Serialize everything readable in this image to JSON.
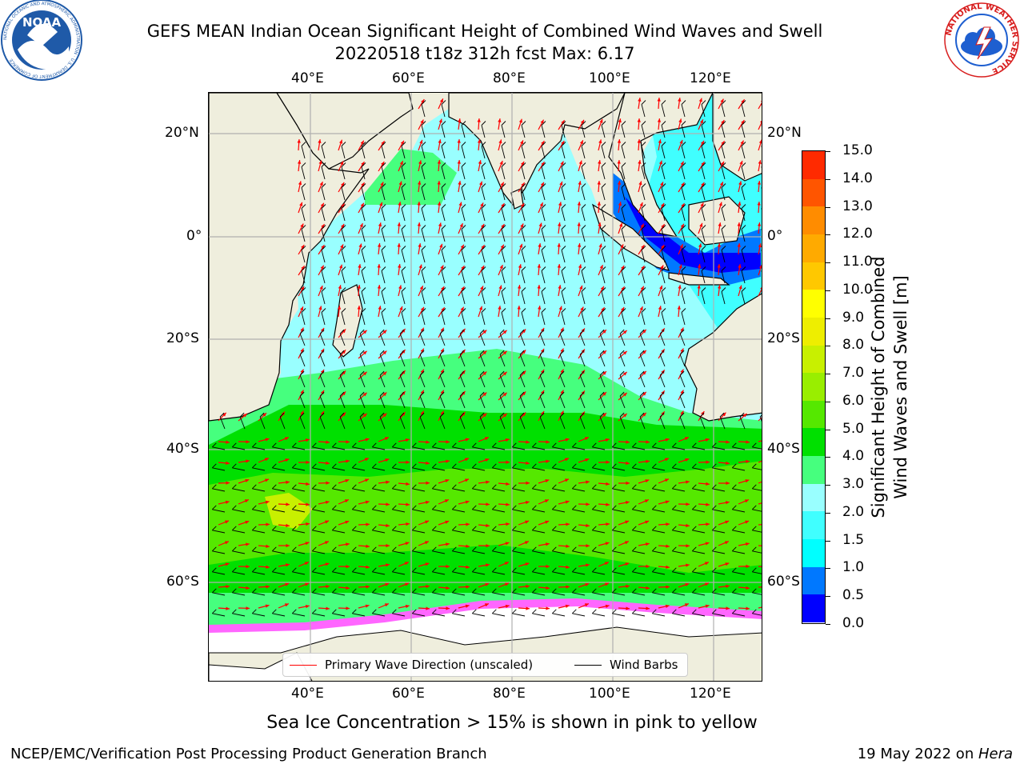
{
  "header": {
    "title_line1": "GEFS MEAN Indian Ocean Significant Height of Combined Wind Waves and Swell",
    "title_line2": "20220518 t18z 312h fcst   Max: 6.17"
  },
  "logos": {
    "left_text": "NOAA",
    "left_ring_text": "NATIONAL OCEANIC AND ATMOSPHERIC ADMINISTRATION · U.S. DEPARTMENT OF COMMERCE",
    "right_ring_text": "NATIONAL WEATHER SERVICE",
    "colors": {
      "noaa_blue": "#1f5aa8",
      "nws_red": "#d81e1e",
      "nws_blue": "#1e5fd0"
    }
  },
  "map": {
    "lon_labels": [
      "40°E",
      "60°E",
      "80°E",
      "100°E",
      "120°E"
    ],
    "lat_labels": [
      "20°N",
      "0°",
      "20°S",
      "40°S",
      "60°S"
    ],
    "lon_range": [
      20,
      130
    ],
    "lat_range": [
      -72,
      27
    ],
    "grid": true,
    "colors": {
      "land": "#efeedd",
      "ice": "#ffffff",
      "wave_arrow": "#ff0000",
      "wind_barb": "#000000"
    }
  },
  "legend": {
    "wave_label": "Primary Wave Direction (unscaled)",
    "wind_label": "Wind Barbs"
  },
  "colorbar": {
    "ticks": [
      "15.0",
      "14.0",
      "13.0",
      "12.0",
      "11.0",
      "10.0",
      "9.0",
      "8.0",
      "7.0",
      "6.0",
      "5.0",
      "4.0",
      "3.0",
      "2.0",
      "1.5",
      "1.0",
      "0.5",
      "0.0"
    ],
    "colors": [
      "#0000ff",
      "#0078ff",
      "#00ffff",
      "#40ffff",
      "#99ffff",
      "#46ff7e",
      "#00e000",
      "#55e800",
      "#99ee00",
      "#c8f000",
      "#eeee00",
      "#ffff00",
      "#ffc800",
      "#ffaa00",
      "#ff8c00",
      "#ff5500",
      "#ff2a00"
    ],
    "label_line1": "Significant Height of Combined",
    "label_line2": "Wind Waves and Swell [m]"
  },
  "caption": "Sea Ice Concentration > 15% is shown in pink to yellow",
  "footer": {
    "left": "NCEP/EMC/Verification Post Processing Product Generation Branch",
    "right_prefix": "19 May 2022 on ",
    "right_host": "Hera"
  }
}
